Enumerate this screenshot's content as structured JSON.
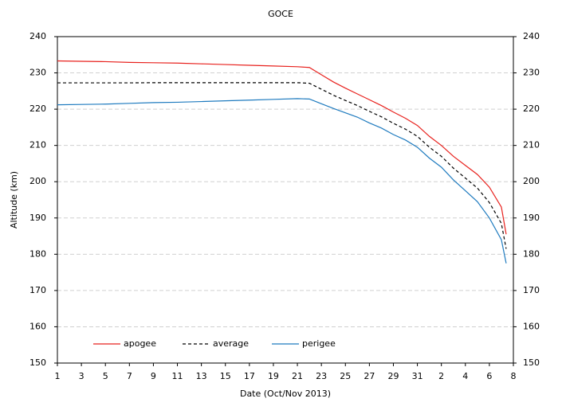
{
  "chart_data": {
    "type": "line",
    "title": "GOCE",
    "x_label": "Date (Oct/Nov 2013)",
    "y_label": "Altitude (km)",
    "x": [
      0,
      2,
      4,
      6,
      8,
      10,
      12,
      14,
      16,
      18,
      20,
      21,
      22,
      23,
      24,
      25,
      26,
      27,
      28,
      29,
      30,
      31,
      32,
      33,
      34,
      35,
      36,
      37,
      37.4
    ],
    "series": [
      {
        "name": "apogee",
        "color": "#e8221e",
        "dash": "solid",
        "values": [
          233.3,
          233.2,
          233.1,
          232.9,
          232.8,
          232.7,
          232.5,
          232.3,
          232.1,
          231.9,
          231.7,
          231.5,
          229.5,
          227.5,
          225.8,
          224.2,
          222.6,
          221,
          219.2,
          217.5,
          215.5,
          212.5,
          210,
          207,
          204.5,
          202,
          198.5,
          193,
          185.5
        ]
      },
      {
        "name": "average",
        "color": "#000000",
        "dash": "dashed",
        "values": [
          227.25,
          227.25,
          227.25,
          227.25,
          227.3,
          227.3,
          227.3,
          227.3,
          227.3,
          227.3,
          227.3,
          227.15,
          225.5,
          223.85,
          222.4,
          221,
          219.4,
          217.9,
          216.1,
          214.5,
          212.5,
          209.5,
          207,
          203.75,
          201,
          198.25,
          194.25,
          188.5,
          181.5
        ]
      },
      {
        "name": "perigee",
        "color": "#1f7bbf",
        "dash": "solid",
        "values": [
          221.2,
          221.3,
          221.4,
          221.6,
          221.8,
          221.9,
          222.1,
          222.3,
          222.5,
          222.7,
          222.9,
          222.8,
          221.5,
          220.2,
          219,
          217.8,
          216.2,
          214.8,
          213,
          211.5,
          209.5,
          206.5,
          204,
          200.5,
          197.5,
          194.5,
          190,
          184,
          177.5
        ]
      }
    ],
    "xlim": [
      0,
      38
    ],
    "xticks": [
      {
        "value": 0,
        "label": "1"
      },
      {
        "value": 2,
        "label": "3"
      },
      {
        "value": 4,
        "label": "5"
      },
      {
        "value": 6,
        "label": "7"
      },
      {
        "value": 8,
        "label": "9"
      },
      {
        "value": 10,
        "label": "11"
      },
      {
        "value": 12,
        "label": "13"
      },
      {
        "value": 14,
        "label": "15"
      },
      {
        "value": 16,
        "label": "17"
      },
      {
        "value": 18,
        "label": "19"
      },
      {
        "value": 20,
        "label": "21"
      },
      {
        "value": 22,
        "label": "23"
      },
      {
        "value": 24,
        "label": "25"
      },
      {
        "value": 26,
        "label": "27"
      },
      {
        "value": 28,
        "label": "29"
      },
      {
        "value": 30,
        "label": "31"
      },
      {
        "value": 32,
        "label": "2"
      },
      {
        "value": 34,
        "label": "4"
      },
      {
        "value": 36,
        "label": "6"
      },
      {
        "value": 38,
        "label": "8"
      }
    ],
    "ylim": [
      150,
      240
    ],
    "yticks": [
      150,
      160,
      170,
      180,
      190,
      200,
      210,
      220,
      230,
      240
    ],
    "y2lim": [
      150,
      240
    ],
    "y2ticks": [
      150,
      160,
      170,
      180,
      190,
      200,
      210,
      220,
      230,
      240
    ],
    "grid": true,
    "legend": "lower left"
  }
}
